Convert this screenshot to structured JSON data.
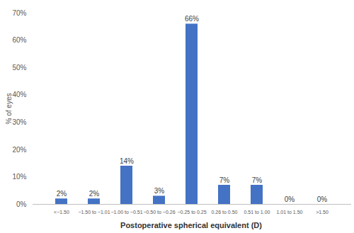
{
  "chart_data": {
    "type": "bar",
    "x_label": "Postoperative spherical equivalent (D)",
    "y_label": "% of eyes",
    "categories": [
      "<−1.50",
      "−1.50 to −1.01",
      "−1.00 to −0.51",
      "−0.50 to −0.26",
      "−0.25 to 0.25",
      "0.26 to 0.50",
      "0.51 to 1.00",
      "1.01 to 1.50",
      ">1.50"
    ],
    "values": [
      2,
      2,
      14,
      3,
      66,
      7,
      7,
      0,
      0
    ],
    "value_labels": [
      "2%",
      "2%",
      "14%",
      "3%",
      "66%",
      "7%",
      "7%",
      "0%",
      "0%"
    ],
    "data_labels": true,
    "color": "#4472c4",
    "ylim": [
      0,
      70
    ],
    "yticks": [
      {
        "value": 0,
        "label": "0%"
      },
      {
        "value": 10,
        "label": "10%"
      },
      {
        "value": 20,
        "label": "20%"
      },
      {
        "value": 30,
        "label": "30%"
      },
      {
        "value": 40,
        "label": "40%"
      },
      {
        "value": 50,
        "label": "50%"
      },
      {
        "value": 60,
        "label": "60%"
      },
      {
        "value": 70,
        "label": "70%"
      }
    ],
    "grid": false
  }
}
